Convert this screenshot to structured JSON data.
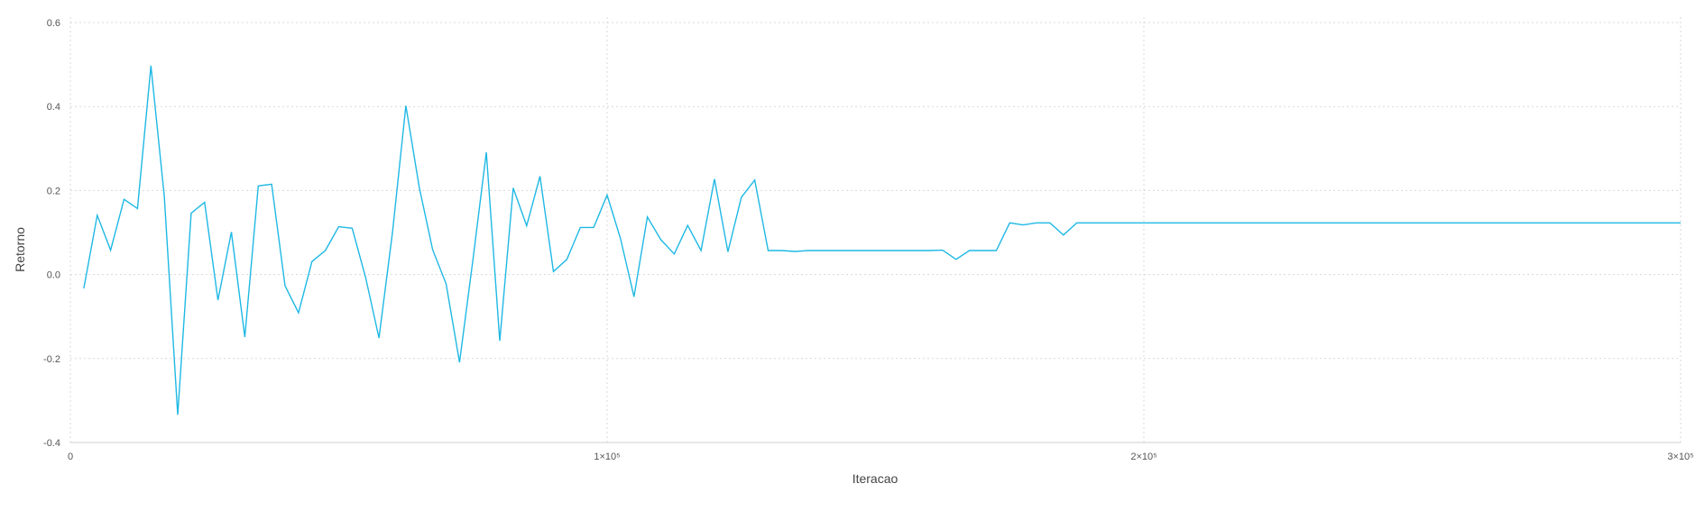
{
  "chart_data": {
    "type": "line",
    "xlabel": "Iteracao",
    "ylabel": "Retorno",
    "xlim": [
      0,
      300000
    ],
    "ylim": [
      -0.4,
      0.6
    ],
    "xticks": [
      {
        "value": 0,
        "label": "0"
      },
      {
        "value": 100000,
        "label": "1×10⁵"
      },
      {
        "value": 200000,
        "label": "2×10⁵"
      },
      {
        "value": 300000,
        "label": "3×10⁵"
      }
    ],
    "yticks": [
      {
        "value": -0.4,
        "label": "-0.4"
      },
      {
        "value": -0.2,
        "label": "-0.2"
      },
      {
        "value": 0.0,
        "label": "0.0"
      },
      {
        "value": 0.2,
        "label": "0.2"
      },
      {
        "value": 0.4,
        "label": "0.4"
      },
      {
        "value": 0.6,
        "label": "0.6"
      }
    ],
    "grid": true,
    "series": [
      {
        "color": "#1fb8e4",
        "x": [
          2500,
          5000,
          7500,
          10000,
          12500,
          15000,
          17500,
          20000,
          22500,
          25000,
          27500,
          30000,
          32500,
          35000,
          37500,
          40000,
          42500,
          45000,
          47500,
          50000,
          52500,
          55000,
          57500,
          60000,
          62500,
          65000,
          67500,
          70000,
          72500,
          75000,
          77500,
          80000,
          82500,
          85000,
          87500,
          90000,
          92500,
          95000,
          97500,
          100000,
          102500,
          105000,
          107500,
          110000,
          112500,
          115000,
          117500,
          120000,
          122500,
          125000,
          127500,
          130000,
          132500,
          135000,
          137500,
          140000,
          145000,
          150000,
          155000,
          160000,
          162500,
          165000,
          167500,
          170000,
          172500,
          175000,
          177500,
          180000,
          182500,
          185000,
          187500,
          190000,
          200000,
          250000,
          300000
        ],
        "y": [
          -0.033,
          0.141,
          0.058,
          0.179,
          0.157,
          0.497,
          0.187,
          -0.334,
          0.146,
          0.172,
          -0.061,
          0.101,
          -0.149,
          0.211,
          0.215,
          -0.027,
          -0.091,
          0.031,
          0.057,
          0.114,
          0.11,
          -0.007,
          -0.151,
          0.099,
          0.402,
          0.207,
          0.059,
          -0.022,
          -0.209,
          0.036,
          0.291,
          -0.158,
          0.206,
          0.116,
          0.234,
          0.007,
          0.036,
          0.112,
          0.112,
          0.189,
          0.085,
          -0.053,
          0.137,
          0.083,
          0.049,
          0.117,
          0.057,
          0.227,
          0.054,
          0.184,
          0.225,
          0.057,
          0.057,
          0.055,
          0.057,
          0.057,
          0.057,
          0.057,
          0.057,
          0.057,
          0.058,
          0.036,
          0.057,
          0.057,
          0.057,
          0.123,
          0.118,
          0.123,
          0.123,
          0.094,
          0.123,
          0.123,
          0.123,
          0.123,
          0.123
        ]
      }
    ]
  }
}
